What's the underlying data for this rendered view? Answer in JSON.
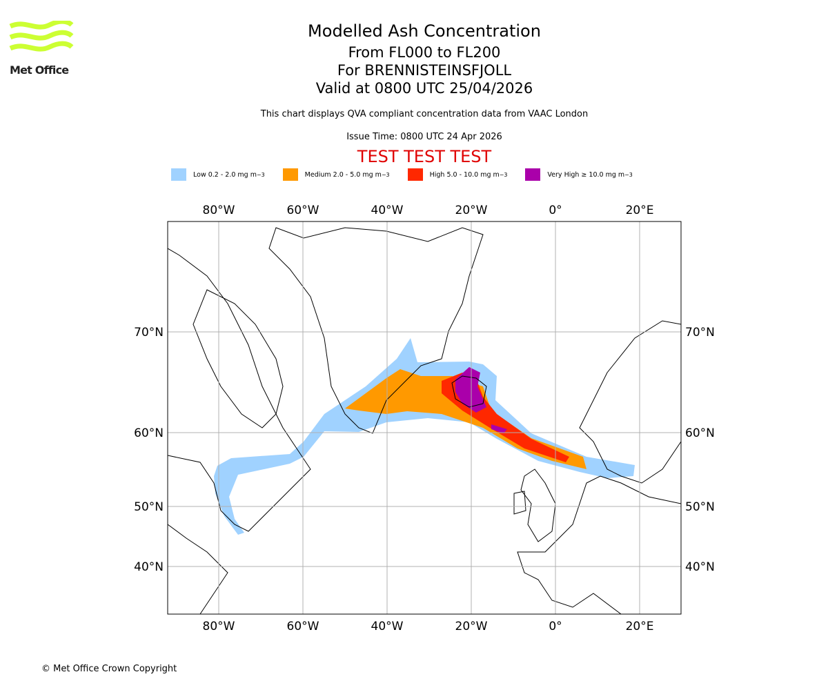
{
  "header": {
    "title": "Modelled Ash Concentration",
    "levels": "From FL000 to FL200",
    "volcano": "For BRENNISTEINSFJOLL",
    "valid": "Valid at 0800 UTC 25/04/2026",
    "note": "This chart displays QVA compliant concentration data from VAAC London",
    "issue_time": "Issue Time: 0800 UTC 24 Apr 2026",
    "test_banner": "TEST TEST TEST"
  },
  "logo": {
    "text": "Met Office",
    "color": "#ccff33"
  },
  "legend": [
    {
      "label": "Low 0.2 - 2.0 mg m",
      "sup": "−3",
      "color": "#a0d2ff"
    },
    {
      "label": "Medium 2.0 - 5.0 mg m",
      "sup": "−3",
      "color": "#ff9900"
    },
    {
      "label": "High 5.0 - 10.0 mg m",
      "sup": "−3",
      "color": "#ff2800"
    },
    {
      "label": "Very High  ≥  10.0 mg m",
      "sup": "−3",
      "color": "#aa00aa"
    }
  ],
  "chart_data": {
    "type": "map",
    "longitude_ticks": [
      "80°W",
      "60°W",
      "40°W",
      "20°W",
      "0°",
      "20°E"
    ],
    "latitude_ticks": [
      "70°N",
      "60°N",
      "50°N",
      "40°N"
    ],
    "grid": true,
    "plume_source": "Iceland (BRENNISTEINSFJOLL)",
    "plume_extent": "Low band from Newfoundland/Labrador across southern Greenland and Iceland to southern Scandinavia; medium/high/very high core around Iceland extending southeast to North Sea"
  },
  "footer": {
    "copyright": "© Met Office Crown Copyright"
  }
}
